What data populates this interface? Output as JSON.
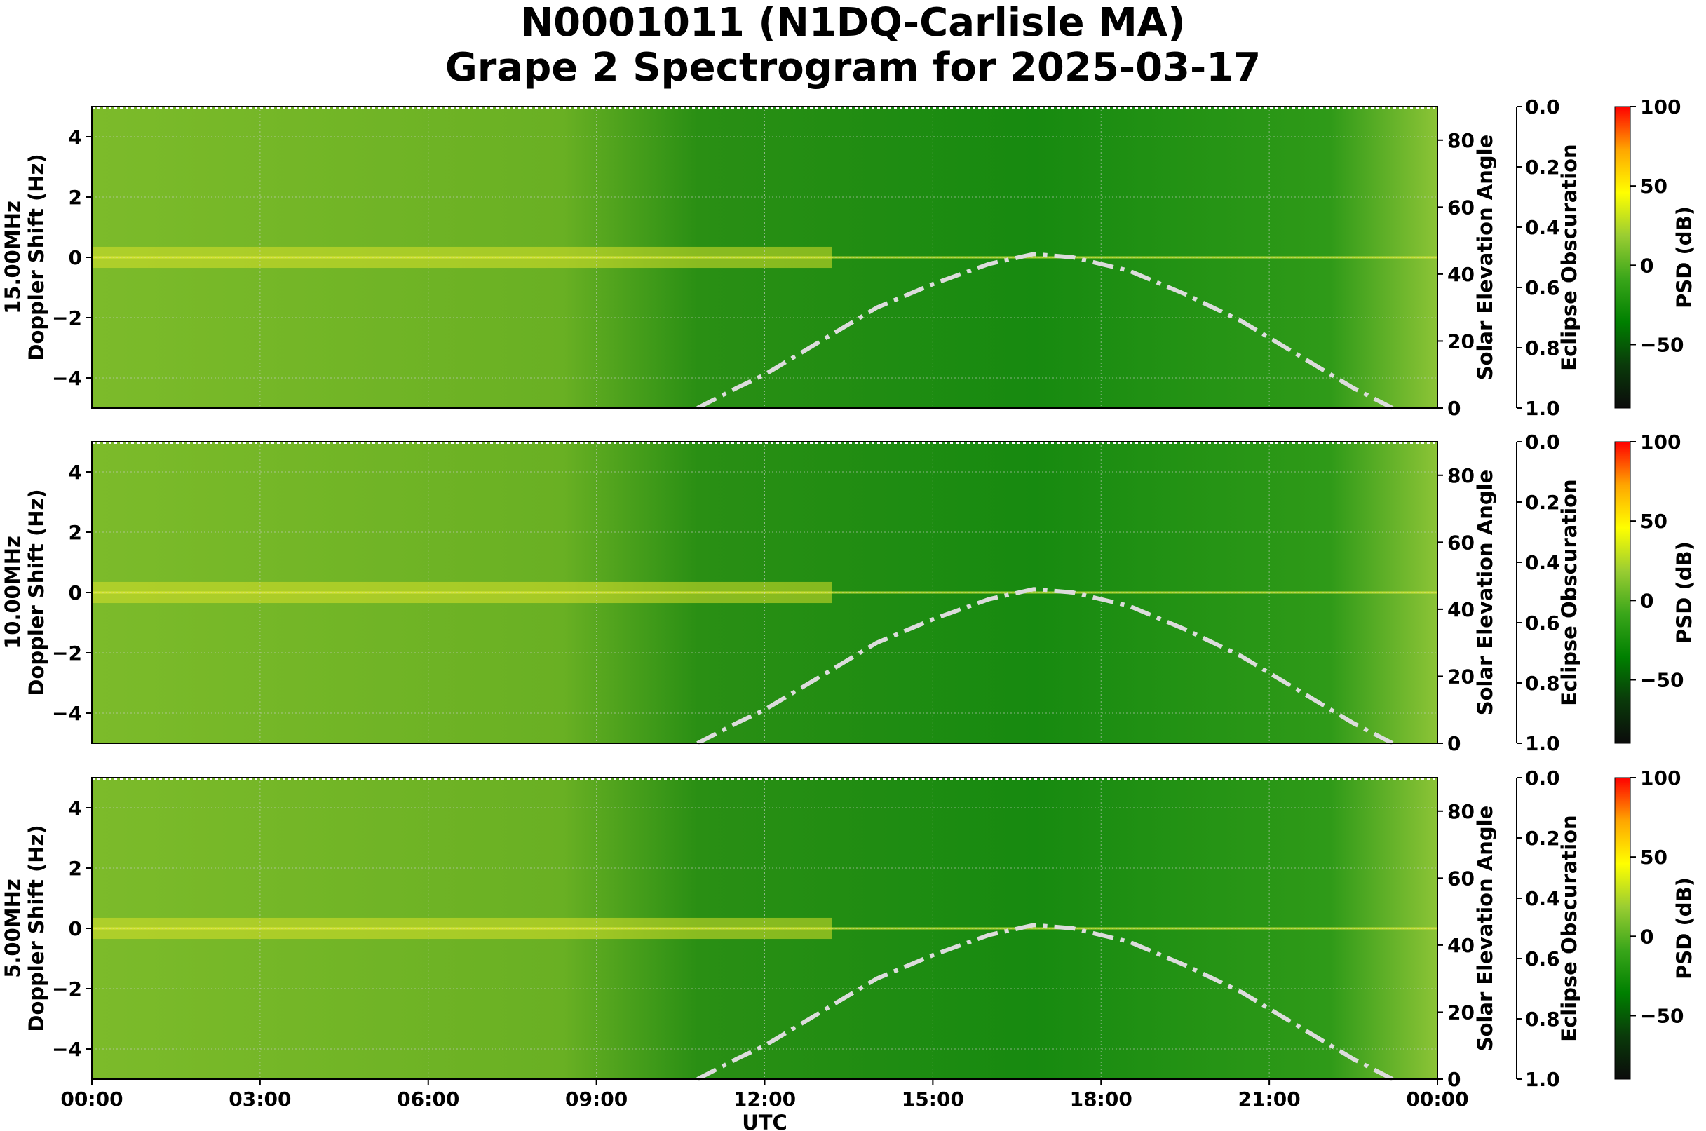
{
  "title_line1": "N0001011 (N1DQ-Carlisle MA)",
  "title_line2": "Grape 2 Spectrogram for 2025-03-17",
  "chart_data": {
    "type": "heatmap",
    "xlabel": "UTC",
    "x_ticks": [
      "00:00",
      "03:00",
      "06:00",
      "09:00",
      "12:00",
      "15:00",
      "18:00",
      "21:00",
      "00:00"
    ],
    "x_range_hours": [
      0,
      24
    ],
    "ylabel_suffix": "Doppler Shift (Hz)",
    "ylim": [
      -5,
      5
    ],
    "y_ticks": [
      4,
      2,
      0,
      -2,
      -4
    ],
    "right_axis": {
      "label": "Solar Elevation Angle",
      "ylim": [
        0,
        90
      ],
      "ticks": [
        80,
        60,
        40,
        20,
        0
      ]
    },
    "eclipse_axis": {
      "label": "Eclipse Obscuration",
      "ylim": [
        0.0,
        1.0
      ],
      "ticks": [
        "0.0",
        "0.2",
        "0.4",
        "0.6",
        "0.8",
        "1.0"
      ]
    },
    "colorbar": {
      "label": "PSD (dB)",
      "ticks": [
        "100",
        "50",
        "0",
        "−50"
      ],
      "range": [
        -90,
        100
      ],
      "colors": [
        "#0b0b0b",
        "#0a3a0a",
        "#008000",
        "#3aa61a",
        "#9acd32",
        "#ffff00",
        "#ffa500",
        "#ff0000"
      ]
    },
    "grid": true,
    "panels": [
      {
        "frequency": "15.00MHz"
      },
      {
        "frequency": "10.00MHz"
      },
      {
        "frequency": "5.00MHz"
      }
    ],
    "solar_elevation": {
      "style": "dash-dot",
      "color": "#dcdcdc",
      "x_hours": [
        10.8,
        11.5,
        12.0,
        13.0,
        14.0,
        15.0,
        16.0,
        16.8,
        17.5,
        18.5,
        19.5,
        20.5,
        21.5,
        22.5,
        23.2
      ],
      "y_degrees": [
        0,
        6,
        10,
        20,
        30,
        37,
        43,
        46,
        45,
        41,
        34,
        26,
        16,
        6,
        0
      ]
    }
  }
}
